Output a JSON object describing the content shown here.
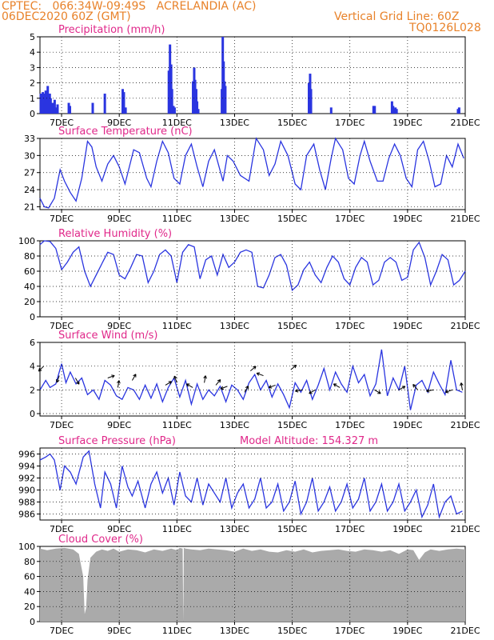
{
  "header": {
    "line1": "CPTEC:   066:34W-09:49S   ACRELANDIA (AC)",
    "line2": "06DEC2020 60Z (GMT)",
    "grid_note": "Vertical Grid Line: 60Z",
    "code": "TQ0126L028"
  },
  "x_ticks": [
    "7DEC",
    "9DEC",
    "11DEC",
    "13DEC",
    "15DEC",
    "17DEC",
    "19DEC",
    "21DEC"
  ],
  "colors": {
    "header": "#e8822a",
    "title": "#e0288a",
    "series": "#2a35e0",
    "cloud": "#aaaaaa",
    "wind_arrow": "#000000"
  },
  "chart_data": [
    {
      "id": "precip",
      "type": "bar",
      "title": "Precipitation (mm/h)",
      "xlim": [
        6.25,
        21
      ],
      "ylim": [
        0,
        5
      ],
      "yticks": [
        0,
        1,
        2,
        3,
        4,
        5
      ],
      "x": [
        6.28,
        6.31,
        6.35,
        6.38,
        6.42,
        6.45,
        6.48,
        6.52,
        6.55,
        6.59,
        6.62,
        6.66,
        6.69,
        6.72,
        6.76,
        6.79,
        6.83,
        6.86,
        7.25,
        7.29,
        8.08,
        8.5,
        9.12,
        9.16,
        9.22,
        10.72,
        10.76,
        10.8,
        10.83,
        10.88,
        10.92,
        11.56,
        11.6,
        11.63,
        11.67,
        11.7,
        11.74,
        12.56,
        12.59,
        12.62,
        12.65,
        12.68,
        15.58,
        15.62,
        15.65,
        16.35,
        17.82,
        17.86,
        18.46,
        18.5,
        18.53,
        18.58,
        18.62,
        20.75,
        20.79
      ],
      "values": [
        1.3,
        0.9,
        1.4,
        1.3,
        0.7,
        1.5,
        1.2,
        1.8,
        0.9,
        1.3,
        1.0,
        0.5,
        0.7,
        0.6,
        0.9,
        0.4,
        0.3,
        0.6,
        0.7,
        0.5,
        0.7,
        1.3,
        1.6,
        1.4,
        0.4,
        2.8,
        4.5,
        3.2,
        1.6,
        0.5,
        0.4,
        2.1,
        3.0,
        2.2,
        1.6,
        0.8,
        0.3,
        1.6,
        5.0,
        3.4,
        2.1,
        1.8,
        2.0,
        2.6,
        1.6,
        0.4,
        0.5,
        0.5,
        0.8,
        0.5,
        0.3,
        0.4,
        0.3,
        0.3,
        0.4
      ]
    },
    {
      "id": "temp",
      "type": "line",
      "title": "Surface Temperature (nC)",
      "xlim": [
        6.25,
        21
      ],
      "ylim": [
        20.5,
        33
      ],
      "yticks": [
        21,
        24,
        27,
        30,
        33
      ],
      "x": [
        6.25,
        6.4,
        6.55,
        6.75,
        6.95,
        7.1,
        7.3,
        7.5,
        7.7,
        7.9,
        8.05,
        8.2,
        8.4,
        8.6,
        8.8,
        9.0,
        9.2,
        9.4,
        9.5,
        9.7,
        9.95,
        10.1,
        10.3,
        10.5,
        10.7,
        10.9,
        11.1,
        11.3,
        11.5,
        11.7,
        11.9,
        12.1,
        12.3,
        12.6,
        12.75,
        12.95,
        13.2,
        13.5,
        13.75,
        14.0,
        14.2,
        14.4,
        14.6,
        14.85,
        15.1,
        15.3,
        15.5,
        15.75,
        15.95,
        16.15,
        16.35,
        16.5,
        16.75,
        16.95,
        17.15,
        17.35,
        17.5,
        17.7,
        17.95,
        18.15,
        18.35,
        18.55,
        18.75,
        18.95,
        19.15,
        19.35,
        19.55,
        19.75,
        19.95,
        20.15,
        20.35,
        20.55,
        20.75,
        20.95
      ],
      "values": [
        22.5,
        21.0,
        20.8,
        22.5,
        27.5,
        25.5,
        23.5,
        22.0,
        26.0,
        32.5,
        31.5,
        28.0,
        25.5,
        28.5,
        30.0,
        28.0,
        25.0,
        29.0,
        31.0,
        30.5,
        26.0,
        24.5,
        29.0,
        32.5,
        30.5,
        26.0,
        25.0,
        30.0,
        32.0,
        28.0,
        24.5,
        29.0,
        31.0,
        25.5,
        30.0,
        29.0,
        26.5,
        25.5,
        33.0,
        31.0,
        26.5,
        28.5,
        32.5,
        30.0,
        25.0,
        24.0,
        30.0,
        32.0,
        27.5,
        24.0,
        29.5,
        33.0,
        31.0,
        26.0,
        25.0,
        30.0,
        32.5,
        29.0,
        25.5,
        25.5,
        29.5,
        32.0,
        30.0,
        26.0,
        24.5,
        31.0,
        32.5,
        29.0,
        24.5,
        25.0,
        30.0,
        28.0,
        32.0,
        29.5
      ]
    },
    {
      "id": "rh",
      "type": "line",
      "title": "Relative Humidity (%)",
      "xlim": [
        6.25,
        21
      ],
      "ylim": [
        0,
        100
      ],
      "yticks": [
        0,
        20,
        40,
        60,
        80,
        100
      ],
      "x": [
        6.25,
        6.4,
        6.6,
        6.8,
        7.0,
        7.2,
        7.4,
        7.6,
        7.8,
        8.0,
        8.2,
        8.4,
        8.6,
        8.8,
        9.0,
        9.2,
        9.4,
        9.6,
        9.8,
        10.0,
        10.2,
        10.4,
        10.6,
        10.8,
        11.0,
        11.2,
        11.4,
        11.6,
        11.8,
        12.0,
        12.2,
        12.4,
        12.6,
        12.8,
        13.0,
        13.2,
        13.4,
        13.6,
        13.8,
        14.0,
        14.2,
        14.4,
        14.6,
        14.8,
        15.0,
        15.2,
        15.4,
        15.6,
        15.8,
        16.0,
        16.2,
        16.4,
        16.6,
        16.8,
        17.0,
        17.2,
        17.4,
        17.6,
        17.8,
        18.0,
        18.2,
        18.4,
        18.6,
        18.8,
        19.0,
        19.2,
        19.4,
        19.6,
        19.8,
        20.0,
        20.2,
        20.4,
        20.6,
        20.8,
        21.0
      ],
      "values": [
        95,
        100,
        99,
        90,
        62,
        72,
        85,
        92,
        60,
        40,
        55,
        70,
        85,
        82,
        55,
        50,
        65,
        82,
        80,
        45,
        60,
        82,
        88,
        80,
        45,
        85,
        95,
        92,
        50,
        75,
        80,
        55,
        82,
        65,
        72,
        85,
        88,
        85,
        40,
        38,
        55,
        78,
        82,
        68,
        35,
        42,
        62,
        72,
        55,
        45,
        65,
        80,
        72,
        50,
        42,
        65,
        78,
        72,
        42,
        48,
        72,
        78,
        72,
        48,
        52,
        88,
        98,
        78,
        42,
        60,
        82,
        75,
        42,
        48,
        60
      ]
    },
    {
      "id": "wind",
      "type": "line",
      "title": "Surface Wind (m/s)",
      "xlim": [
        6.25,
        21
      ],
      "ylim": [
        -0.2,
        6
      ],
      "yticks": [
        0,
        2,
        4,
        6
      ],
      "x": [
        6.25,
        6.45,
        6.6,
        6.8,
        7.0,
        7.15,
        7.3,
        7.5,
        7.7,
        7.9,
        8.1,
        8.3,
        8.5,
        8.7,
        8.9,
        9.1,
        9.3,
        9.5,
        9.7,
        9.9,
        10.1,
        10.3,
        10.5,
        10.7,
        10.9,
        11.1,
        11.3,
        11.5,
        11.7,
        11.9,
        12.1,
        12.3,
        12.5,
        12.7,
        12.9,
        13.1,
        13.3,
        13.5,
        13.7,
        13.9,
        14.1,
        14.3,
        14.5,
        14.7,
        14.9,
        15.1,
        15.3,
        15.5,
        15.7,
        15.9,
        16.1,
        16.3,
        16.5,
        16.7,
        16.9,
        17.1,
        17.3,
        17.5,
        17.7,
        17.9,
        18.1,
        18.3,
        18.5,
        18.7,
        18.9,
        19.1,
        19.3,
        19.5,
        19.7,
        19.9,
        20.1,
        20.3,
        20.5,
        20.7,
        20.9
      ],
      "values": [
        2.0,
        2.8,
        2.2,
        2.5,
        4.2,
        2.6,
        3.5,
        2.5,
        3.0,
        1.6,
        2.0,
        1.2,
        2.8,
        2.4,
        1.5,
        1.2,
        2.2,
        2.0,
        1.2,
        2.4,
        1.3,
        2.5,
        1.0,
        2.2,
        3.0,
        1.4,
        2.8,
        0.8,
        2.5,
        1.2,
        2.0,
        1.5,
        2.3,
        1.0,
        2.4,
        2.0,
        1.2,
        2.6,
        3.3,
        2.0,
        2.8,
        1.4,
        2.5,
        1.6,
        0.5,
        2.6,
        1.8,
        2.8,
        1.2,
        2.4,
        3.8,
        2.0,
        3.5,
        2.5,
        1.8,
        4.0,
        2.6,
        3.3,
        1.5,
        2.5,
        5.4,
        1.5,
        3.0,
        2.0,
        4.0,
        0.3,
        2.4,
        2.8,
        1.8,
        3.5,
        2.5,
        1.6,
        4.5,
        2.0,
        1.8
      ]
    },
    {
      "id": "pressure",
      "type": "line",
      "title": "Surface Pressure (hPa)",
      "annotation": "Model Altitude: 154.327 m",
      "xlim": [
        6.25,
        21
      ],
      "ylim": [
        985,
        997
      ],
      "yticks": [
        986,
        988,
        990,
        992,
        994,
        996
      ],
      "x": [
        6.25,
        6.45,
        6.6,
        6.75,
        6.95,
        7.1,
        7.3,
        7.5,
        7.75,
        7.95,
        8.15,
        8.35,
        8.5,
        8.7,
        8.9,
        9.1,
        9.3,
        9.45,
        9.65,
        9.9,
        10.1,
        10.3,
        10.5,
        10.7,
        10.9,
        11.1,
        11.3,
        11.5,
        11.7,
        11.9,
        12.1,
        12.3,
        12.5,
        12.7,
        12.9,
        13.1,
        13.3,
        13.5,
        13.7,
        13.9,
        14.1,
        14.3,
        14.5,
        14.7,
        14.9,
        15.1,
        15.3,
        15.5,
        15.7,
        15.9,
        16.1,
        16.3,
        16.5,
        16.7,
        16.9,
        17.1,
        17.3,
        17.5,
        17.7,
        17.9,
        18.1,
        18.3,
        18.5,
        18.7,
        18.9,
        19.1,
        19.3,
        19.5,
        19.7,
        19.9,
        20.1,
        20.3,
        20.5,
        20.7,
        20.9
      ],
      "values": [
        995,
        995.5,
        996,
        995,
        990,
        994,
        993,
        991,
        995.5,
        996.5,
        991,
        987,
        993,
        991,
        987,
        994,
        990.5,
        989,
        991.5,
        987,
        991,
        993,
        989.5,
        992,
        987.5,
        993,
        989,
        988,
        992,
        987.5,
        991,
        989.5,
        988,
        992,
        987,
        989.5,
        991,
        987,
        988.5,
        992,
        987,
        988,
        991,
        986.5,
        988,
        991.5,
        986,
        988,
        992,
        986.5,
        988,
        990.5,
        986.5,
        988,
        991,
        987,
        988.5,
        992,
        986.5,
        988,
        991,
        986.5,
        988,
        991,
        986.5,
        988,
        990,
        985.5,
        987.5,
        991,
        985.5,
        988,
        989,
        986,
        986.5
      ]
    },
    {
      "id": "cloud",
      "type": "area",
      "title": "Cloud Cover (%)",
      "xlim": [
        6.25,
        21
      ],
      "ylim": [
        0,
        100
      ],
      "yticks": [
        0,
        20,
        40,
        60,
        80,
        100
      ],
      "x": [
        6.25,
        6.5,
        6.8,
        7.1,
        7.4,
        7.6,
        7.75,
        7.8,
        7.85,
        7.9,
        8.0,
        8.2,
        8.4,
        8.6,
        8.8,
        9.0,
        9.3,
        9.6,
        9.9,
        10.2,
        10.5,
        10.8,
        11.0,
        11.1,
        11.2,
        11.22,
        11.24,
        11.3,
        11.5,
        11.8,
        12.1,
        12.4,
        12.7,
        13.0,
        13.3,
        13.6,
        13.9,
        14.2,
        14.5,
        14.8,
        15.1,
        15.4,
        15.7,
        16.0,
        16.3,
        16.6,
        16.9,
        17.2,
        17.5,
        17.8,
        18.1,
        18.4,
        18.7,
        19.0,
        19.2,
        19.4,
        19.6,
        19.8,
        20.1,
        20.4,
        20.7,
        21.0
      ],
      "values": [
        97,
        95,
        97,
        98,
        96,
        90,
        60,
        10,
        18,
        55,
        85,
        93,
        96,
        94,
        97,
        93,
        96,
        95,
        92,
        96,
        94,
        97,
        95,
        98,
        97,
        0,
        98,
        97,
        96,
        95,
        97,
        96,
        95,
        93,
        97,
        94,
        96,
        93,
        92,
        95,
        93,
        96,
        92,
        94,
        95,
        96,
        94,
        93,
        96,
        95,
        93,
        95,
        90,
        96,
        95,
        82,
        92,
        96,
        94,
        96,
        97,
        96
      ]
    }
  ]
}
